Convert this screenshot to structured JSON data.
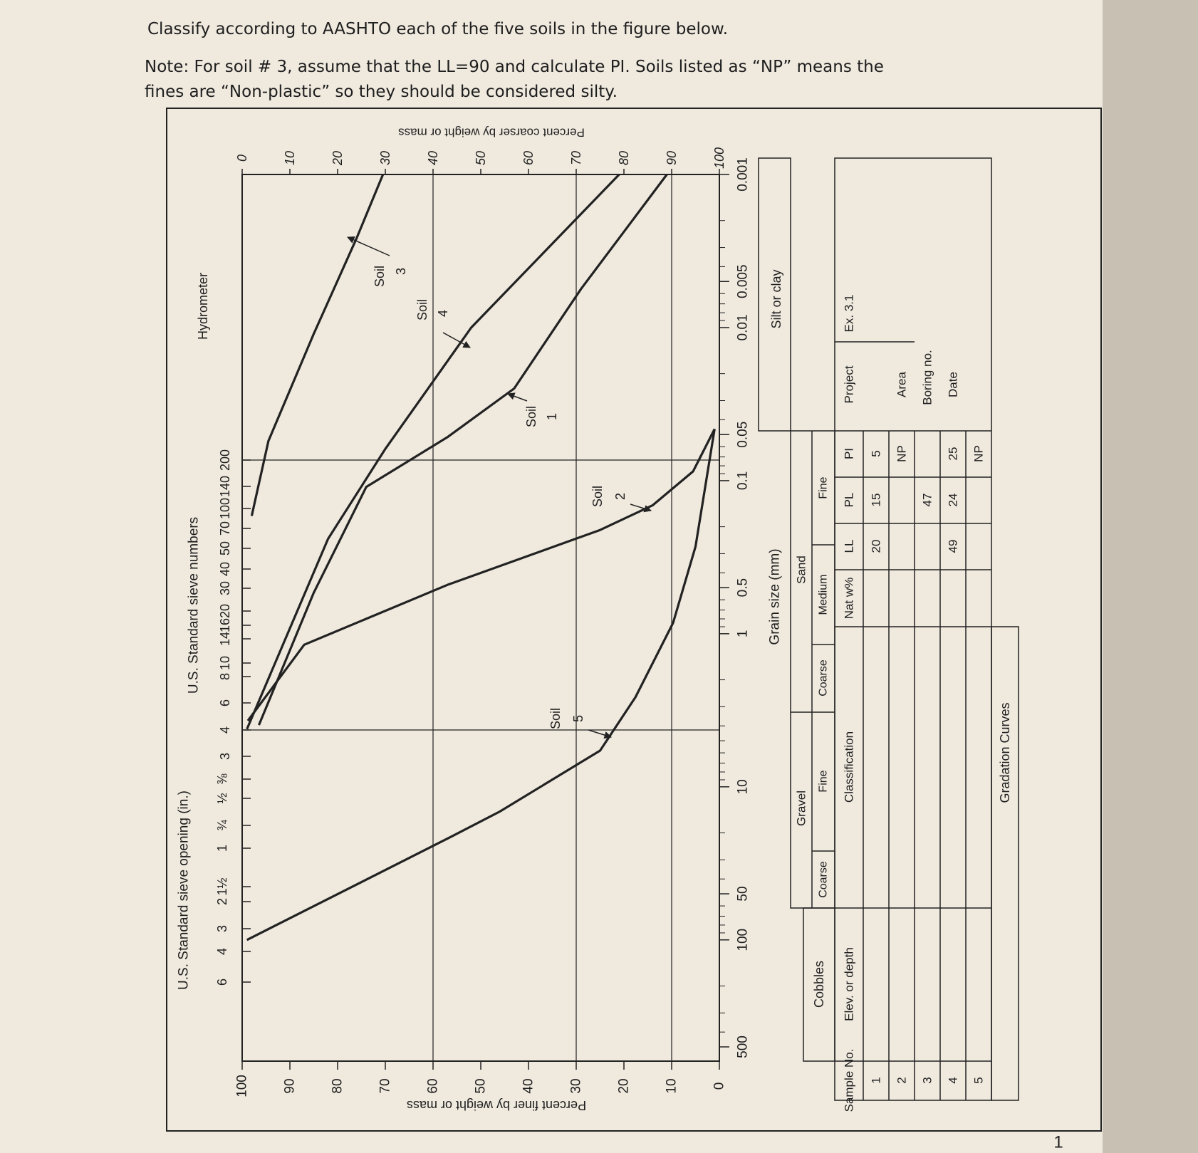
{
  "instructions": {
    "line1": "Classify according to AASHTO each of the five soils in the figure below.",
    "line2": "Note:  For soil # 3, assume that the LL=90 and calculate PI. Soils listed as “NP” means the",
    "line3": "fines are “Non-plastic” so they should be considered silty."
  },
  "chart": {
    "sieve_opening_title": "U.S. Standard sieve opening (in.)",
    "sieve_number_title": "U.S. Standard sieve numbers",
    "hydrometer_title": "Hydrometer",
    "sieve_openings": [
      "6",
      "4",
      "3",
      "2",
      "1½",
      "1",
      "¾",
      "½",
      "⅜"
    ],
    "sieve_numbers": [
      "3",
      "4",
      "6",
      "8",
      "10",
      "14",
      "16",
      "20",
      "30",
      "40",
      "50",
      "70",
      "100",
      "140",
      "200"
    ],
    "percent_finer_title": "Percent finer by weight or mass",
    "percent_finer_ticks": [
      0,
      10,
      20,
      30,
      40,
      50,
      60,
      70,
      80,
      90,
      100
    ],
    "percent_coarser_title": "Percent coarser by weight or mass",
    "percent_coarser_ticks": [
      0,
      10,
      20,
      30,
      40,
      50,
      60,
      70,
      80,
      90,
      100
    ],
    "grain_size_title": "Grain size (mm)",
    "grain_size_ticks": [
      500,
      100,
      50,
      10,
      1,
      0.5,
      0.1,
      0.05,
      0.01,
      0.005,
      0.001
    ],
    "curves": [
      {
        "label": "Soil",
        "number": "1",
        "points": [
          [
            3.95,
            96.5
          ],
          [
            0.54,
            85
          ],
          [
            0.11,
            74
          ],
          [
            0.052,
            57
          ],
          [
            0.025,
            43
          ],
          [
            0.0056,
            29
          ],
          [
            0.001,
            11
          ]
        ]
      },
      {
        "label": "Soil",
        "number": "2",
        "points": [
          [
            3.7,
            98.8
          ],
          [
            1.18,
            87
          ],
          [
            0.48,
            57
          ],
          [
            0.21,
            25
          ],
          [
            0.145,
            14
          ],
          [
            0.087,
            5.5
          ],
          [
            0.046,
            1
          ]
        ]
      },
      {
        "label": "Soil",
        "number": "3",
        "points": [
          [
            0.17,
            98
          ],
          [
            0.055,
            94.5
          ],
          [
            0.011,
            85
          ],
          [
            0.0026,
            76
          ],
          [
            0.001,
            70.5
          ]
        ]
      },
      {
        "label": "Soil",
        "number": "4",
        "points": [
          [
            4.2,
            99
          ],
          [
            0.24,
            82
          ],
          [
            0.062,
            70
          ],
          [
            0.01,
            52
          ],
          [
            0.001,
            21
          ]
        ]
      },
      {
        "label": "Soil",
        "number": "5",
        "points": [
          [
            100,
            99
          ],
          [
            21.8,
            57
          ],
          [
            14.5,
            46
          ],
          [
            5.8,
            25
          ],
          [
            2.6,
            17.6
          ],
          [
            0.85,
            9.7
          ],
          [
            0.27,
            5
          ],
          [
            0.046,
            1
          ]
        ]
      }
    ]
  },
  "size_classes": {
    "cobbles": "Cobbles",
    "gravel": "Gravel",
    "gravel_coarse": "Coarse",
    "gravel_fine": "Fine",
    "sand": "Sand",
    "sand_coarse": "Coarse",
    "sand_medium": "Medium",
    "sand_fine": "Fine",
    "silt_clay": "Silt or clay"
  },
  "table": {
    "headers": {
      "sample": "Sample No.",
      "elev": "Elev. or depth",
      "classification": "Classification",
      "natw": "Nat w%",
      "LL": "LL",
      "PL": "PL",
      "PI": "PI"
    },
    "rows": [
      {
        "sample": 1,
        "LL": 20,
        "PL": 15,
        "PI": 5
      },
      {
        "sample": 2,
        "PI": "NP"
      },
      {
        "sample": 3,
        "PL": 47
      },
      {
        "sample": 4,
        "LL": 49,
        "PL": 24,
        "PI": 25
      },
      {
        "sample": 5,
        "PI": "NP"
      }
    ]
  },
  "info": {
    "project_label": "Project",
    "project": "Ex. 3.1",
    "area_label": "Area",
    "boring_label": "Boring no.",
    "date_label": "Date"
  },
  "footer": "Gradation Curves",
  "page_number": "1"
}
